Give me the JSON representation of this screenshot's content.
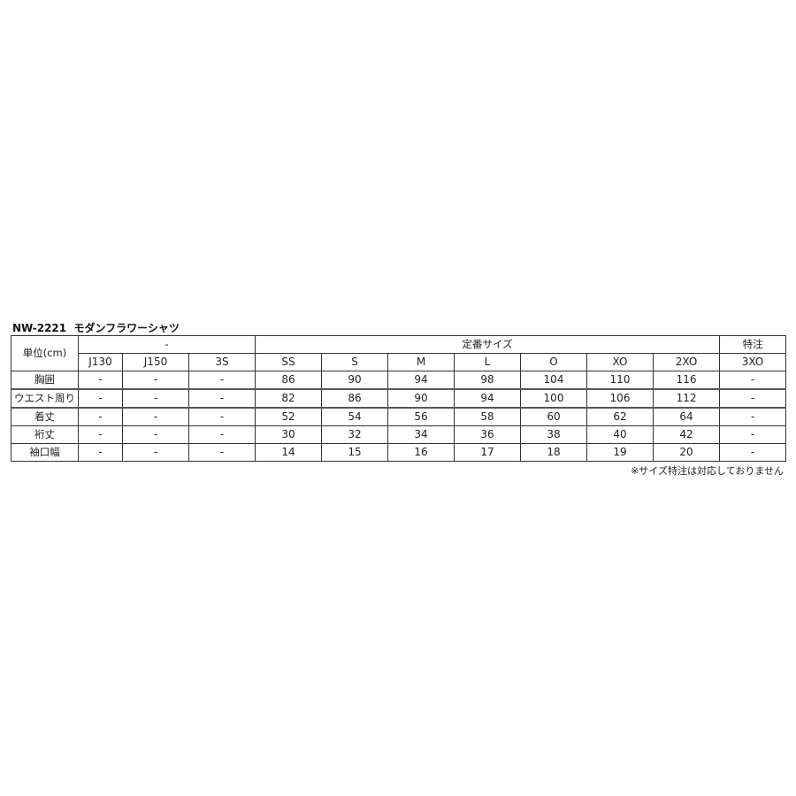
{
  "title": "NW-2221  モダンフラワーシャツ",
  "table": {
    "unit_label": "単位(cm)",
    "groups": [
      {
        "label": "-",
        "span": 3
      },
      {
        "label": "定番サイズ",
        "span": 7
      },
      {
        "label": "特注",
        "span": 1
      }
    ],
    "sizes": [
      "J130",
      "J150",
      "3S",
      "SS",
      "S",
      "M",
      "L",
      "O",
      "XO",
      "2XO",
      "3XO"
    ],
    "rows": [
      {
        "label": "胸囲",
        "values": [
          "-",
          "-",
          "-",
          "86",
          "90",
          "94",
          "98",
          "104",
          "110",
          "116",
          "-"
        ]
      },
      {
        "label": "ウエスト周り",
        "values": [
          "-",
          "-",
          "-",
          "82",
          "86",
          "90",
          "94",
          "100",
          "106",
          "112",
          "-"
        ]
      },
      {
        "label": "着丈",
        "values": [
          "-",
          "-",
          "-",
          "52",
          "54",
          "56",
          "58",
          "60",
          "62",
          "64",
          "-"
        ]
      },
      {
        "label": "裄丈",
        "values": [
          "-",
          "-",
          "-",
          "30",
          "32",
          "34",
          "36",
          "38",
          "40",
          "42",
          "-"
        ]
      },
      {
        "label": "袖口幅",
        "values": [
          "-",
          "-",
          "-",
          "14",
          "15",
          "16",
          "17",
          "18",
          "19",
          "20",
          "-"
        ]
      }
    ]
  },
  "note": "※サイズ特注は対応しておりません"
}
